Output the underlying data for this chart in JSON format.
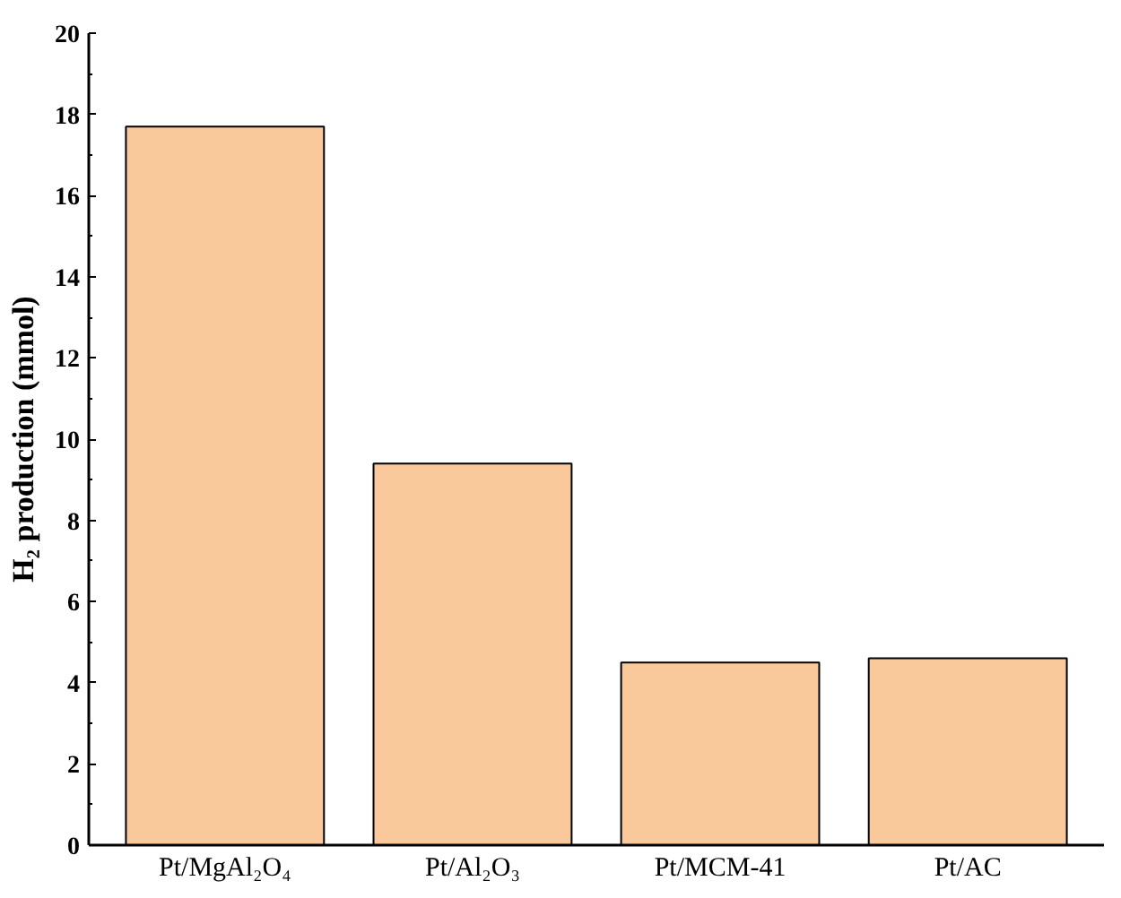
{
  "chart_data": {
    "type": "bar",
    "ylabel": "H₂ production (mmol)",
    "categories": [
      "Pt/MgAl₂O₄",
      "Pt/Al₂O₃",
      "Pt/MCM-41",
      "Pt/AC"
    ],
    "values": [
      17.7,
      9.4,
      4.5,
      4.6
    ],
    "color": "#f9c89b",
    "ylim": [
      0,
      20
    ],
    "yticks": [
      0,
      2,
      4,
      6,
      8,
      10,
      12,
      14,
      16,
      18,
      20
    ]
  }
}
